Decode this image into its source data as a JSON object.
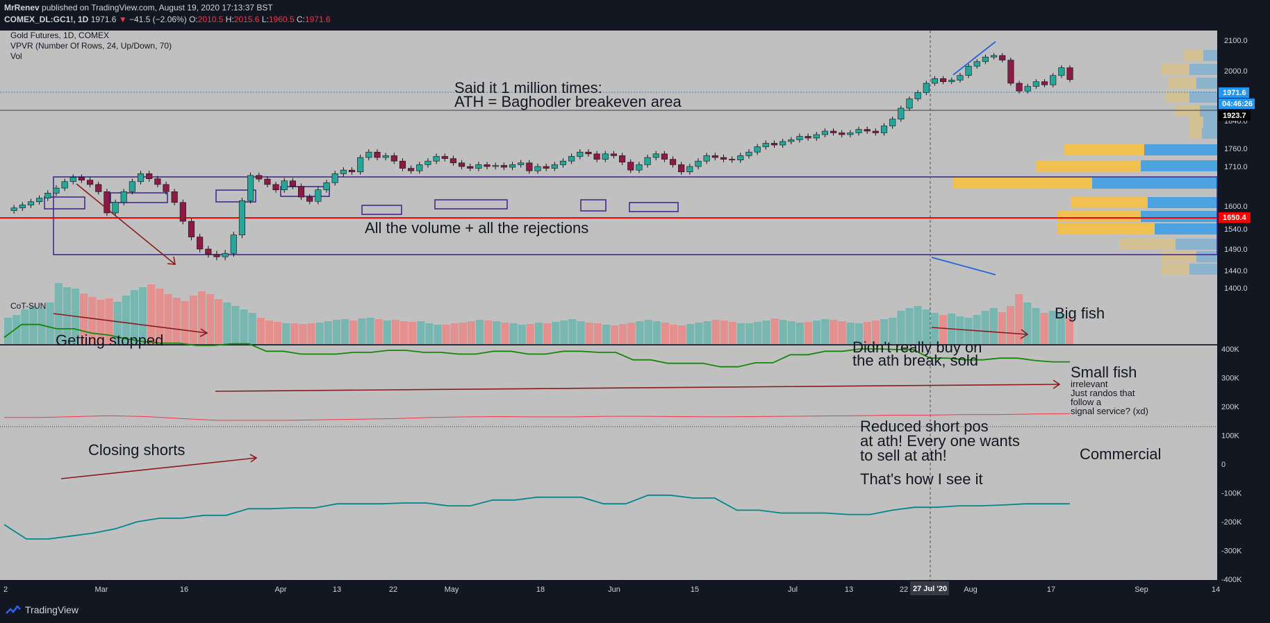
{
  "header": {
    "author": "MrRenev",
    "published": "published on TradingView.com, August 19, 2020 17:13:37 BST",
    "symbol": "COMEX_DL:GC1!, 1D",
    "last": "1971.6",
    "arrow": "▼",
    "change": "−41.5 (−2.06%)",
    "o_label": "O:",
    "o": "2010.5",
    "h_label": "H:",
    "h": "2015.6",
    "l_label": "L:",
    "l": "1960.5",
    "c_label": "C:",
    "c": "1971.6"
  },
  "legend": {
    "title": "Gold Futures, 1D, COMEX",
    "vpvr": "VPVR (Number Of Rows, 24, Up/Down, 70)",
    "vol": "Vol",
    "cot": "CoT-SUN"
  },
  "footer": {
    "brand": "TradingView"
  },
  "colors": {
    "background": "#c0c0c0",
    "up": "#26a69a",
    "down": "#8b1a47",
    "vol_up": "#78b7b1",
    "vol_down": "#e4908f",
    "big_fish": "#138808",
    "small_fish": "#f23645",
    "commercial": "#00878a",
    "vpvr_up": "#4da3e0",
    "vpvr_down": "#f0c050",
    "support_line": "#ff0000",
    "box": "#3d1f8c"
  },
  "chart_data": [
    {
      "type": "candlestick",
      "title": "Gold Futures, 1D, COMEX",
      "x_ticks": [
        "2",
        "Mar",
        "16",
        "Apr",
        "13",
        "22",
        "May",
        "18",
        "Jun",
        "15",
        "Jul",
        "13",
        "22",
        "Aug",
        "17",
        "Sep",
        "14"
      ],
      "cursor_date": "27 Jul '20",
      "y_ticks": [
        2100,
        2000,
        1840,
        1760,
        1710,
        1600,
        1540,
        1490,
        1440,
        1400
      ],
      "price_labels": [
        {
          "label": "1971.6",
          "role": "last"
        },
        {
          "label": "04:46:26",
          "role": "countdown"
        },
        {
          "label": "1923.7",
          "role": "crosshair"
        },
        {
          "label": "1650.4",
          "role": "line"
        }
      ],
      "closes": [
        1588,
        1595,
        1603,
        1612,
        1622,
        1636,
        1650,
        1668,
        1680,
        1672,
        1660,
        1640,
        1582,
        1610,
        1640,
        1668,
        1690,
        1676,
        1660,
        1640,
        1610,
        1560,
        1520,
        1490,
        1478,
        1472,
        1480,
        1525,
        1615,
        1685,
        1675,
        1660,
        1645,
        1670,
        1655,
        1625,
        1613,
        1645,
        1665,
        1690,
        1700,
        1695,
        1735,
        1750,
        1735,
        1740,
        1725,
        1705,
        1698,
        1715,
        1725,
        1738,
        1732,
        1720,
        1710,
        1705,
        1715,
        1710,
        1713,
        1708,
        1715,
        1720,
        1698,
        1710,
        1705,
        1715,
        1725,
        1738,
        1750,
        1745,
        1730,
        1745,
        1740,
        1722,
        1700,
        1715,
        1735,
        1745,
        1730,
        1715,
        1695,
        1710,
        1725,
        1740,
        1735,
        1730,
        1728,
        1740,
        1750,
        1765,
        1775,
        1770,
        1780,
        1785,
        1795,
        1790,
        1800,
        1810,
        1805,
        1800,
        1805,
        1815,
        1810,
        1805,
        1825,
        1845,
        1880,
        1910,
        1930,
        1960,
        1975,
        1965,
        1970,
        1985,
        2015,
        2030,
        2045,
        2050,
        2035,
        1960,
        1935,
        1950,
        1965,
        1955,
        1985,
        2010,
        1971.6
      ],
      "volume_levels": [
        38,
        42,
        50,
        55,
        52,
        60,
        88,
        82,
        80,
        73,
        68,
        64,
        66,
        61,
        70,
        78,
        82,
        86,
        80,
        72,
        67,
        62,
        70,
        76,
        72,
        65,
        60,
        55,
        50,
        45,
        38,
        34,
        32,
        30,
        30,
        29,
        30,
        31,
        33,
        35,
        36,
        34,
        37,
        38,
        36,
        34,
        35,
        33,
        32,
        33,
        30,
        28,
        28,
        30,
        31,
        33,
        35,
        34,
        33,
        31,
        30,
        28,
        29,
        31,
        30,
        32,
        34,
        36,
        33,
        31,
        30,
        28,
        27,
        29,
        31,
        33,
        35,
        33,
        31,
        28,
        27,
        29,
        31,
        33,
        35,
        34,
        32,
        30,
        30,
        32,
        34,
        37,
        35,
        33,
        31,
        32,
        34,
        36,
        35,
        33,
        31,
        30,
        32,
        34,
        36,
        38,
        48,
        52,
        55,
        50,
        45,
        42,
        44,
        40,
        38,
        42,
        48,
        52,
        46,
        55,
        72,
        60,
        52,
        45,
        48,
        44,
        38
      ],
      "volume_ticks": []
    },
    {
      "type": "line",
      "title": "CoT-SUN",
      "y_ticks": [
        "400K",
        "300K",
        "200K",
        "100K",
        "0",
        "-100K",
        "-200K",
        "-300K",
        "-400K"
      ],
      "series": [
        {
          "name": "Big fish",
          "values": [
            310,
            355,
            355,
            340,
            340,
            325,
            318,
            305,
            295,
            290,
            290,
            282,
            282,
            288,
            288,
            262,
            262,
            252,
            252,
            252,
            258,
            258,
            265,
            265,
            258,
            258,
            252,
            252,
            262,
            262,
            252,
            252,
            262,
            262,
            258,
            258,
            232,
            232,
            220,
            220,
            220,
            208,
            208,
            222,
            222,
            250,
            250,
            262,
            262,
            270,
            270,
            268,
            268,
            238,
            238,
            232,
            232,
            238,
            238,
            230,
            225,
            225
          ]
        },
        {
          "name": "Small fish",
          "values": [
            32,
            32,
            35,
            38,
            35,
            28,
            22,
            22,
            22,
            24,
            26,
            28,
            32,
            34,
            35,
            34,
            34,
            36,
            36,
            35,
            34,
            35,
            36,
            37,
            38,
            40,
            40,
            42,
            42,
            44,
            45
          ]
        },
        {
          "name": "Commercial",
          "values": [
            -340,
            -390,
            -390,
            -380,
            -370,
            -355,
            -330,
            -318,
            -318,
            -308,
            -308,
            -285,
            -285,
            -282,
            -282,
            -268,
            -268,
            -268,
            -265,
            -265,
            -275,
            -275,
            -255,
            -255,
            -245,
            -245,
            -245,
            -268,
            -268,
            -238,
            -238,
            -248,
            -248,
            -290,
            -290,
            -300,
            -300,
            -300,
            -305,
            -305,
            -290,
            -280,
            -280,
            -275,
            -275,
            -272,
            -268,
            -268,
            -268
          ]
        }
      ]
    }
  ],
  "annotations": {
    "ath_title": "Said it 1 million times:",
    "ath_sub": "ATH = Baghodler breakeven area",
    "volume_note": "All the volume + all the rejections",
    "getting_stopped": "Getting stopped",
    "big_fish": "Big fish",
    "didnt_buy_1": "Didn't really buy on",
    "didnt_buy_2": "the ath break, sold",
    "small_fish": "Small fish",
    "irrelevant": "irrelevant",
    "randos_1": "Just randos that",
    "randos_2": "follow a",
    "randos_3": "signal service? (xd)",
    "closing_shorts": "Closing shorts",
    "reduced_1": "Reduced short pos",
    "reduced_2": "at ath! Every one wants",
    "reduced_3": "to sell at ath!",
    "commercial": "Commercial",
    "thats_how": "That's how I see it"
  }
}
